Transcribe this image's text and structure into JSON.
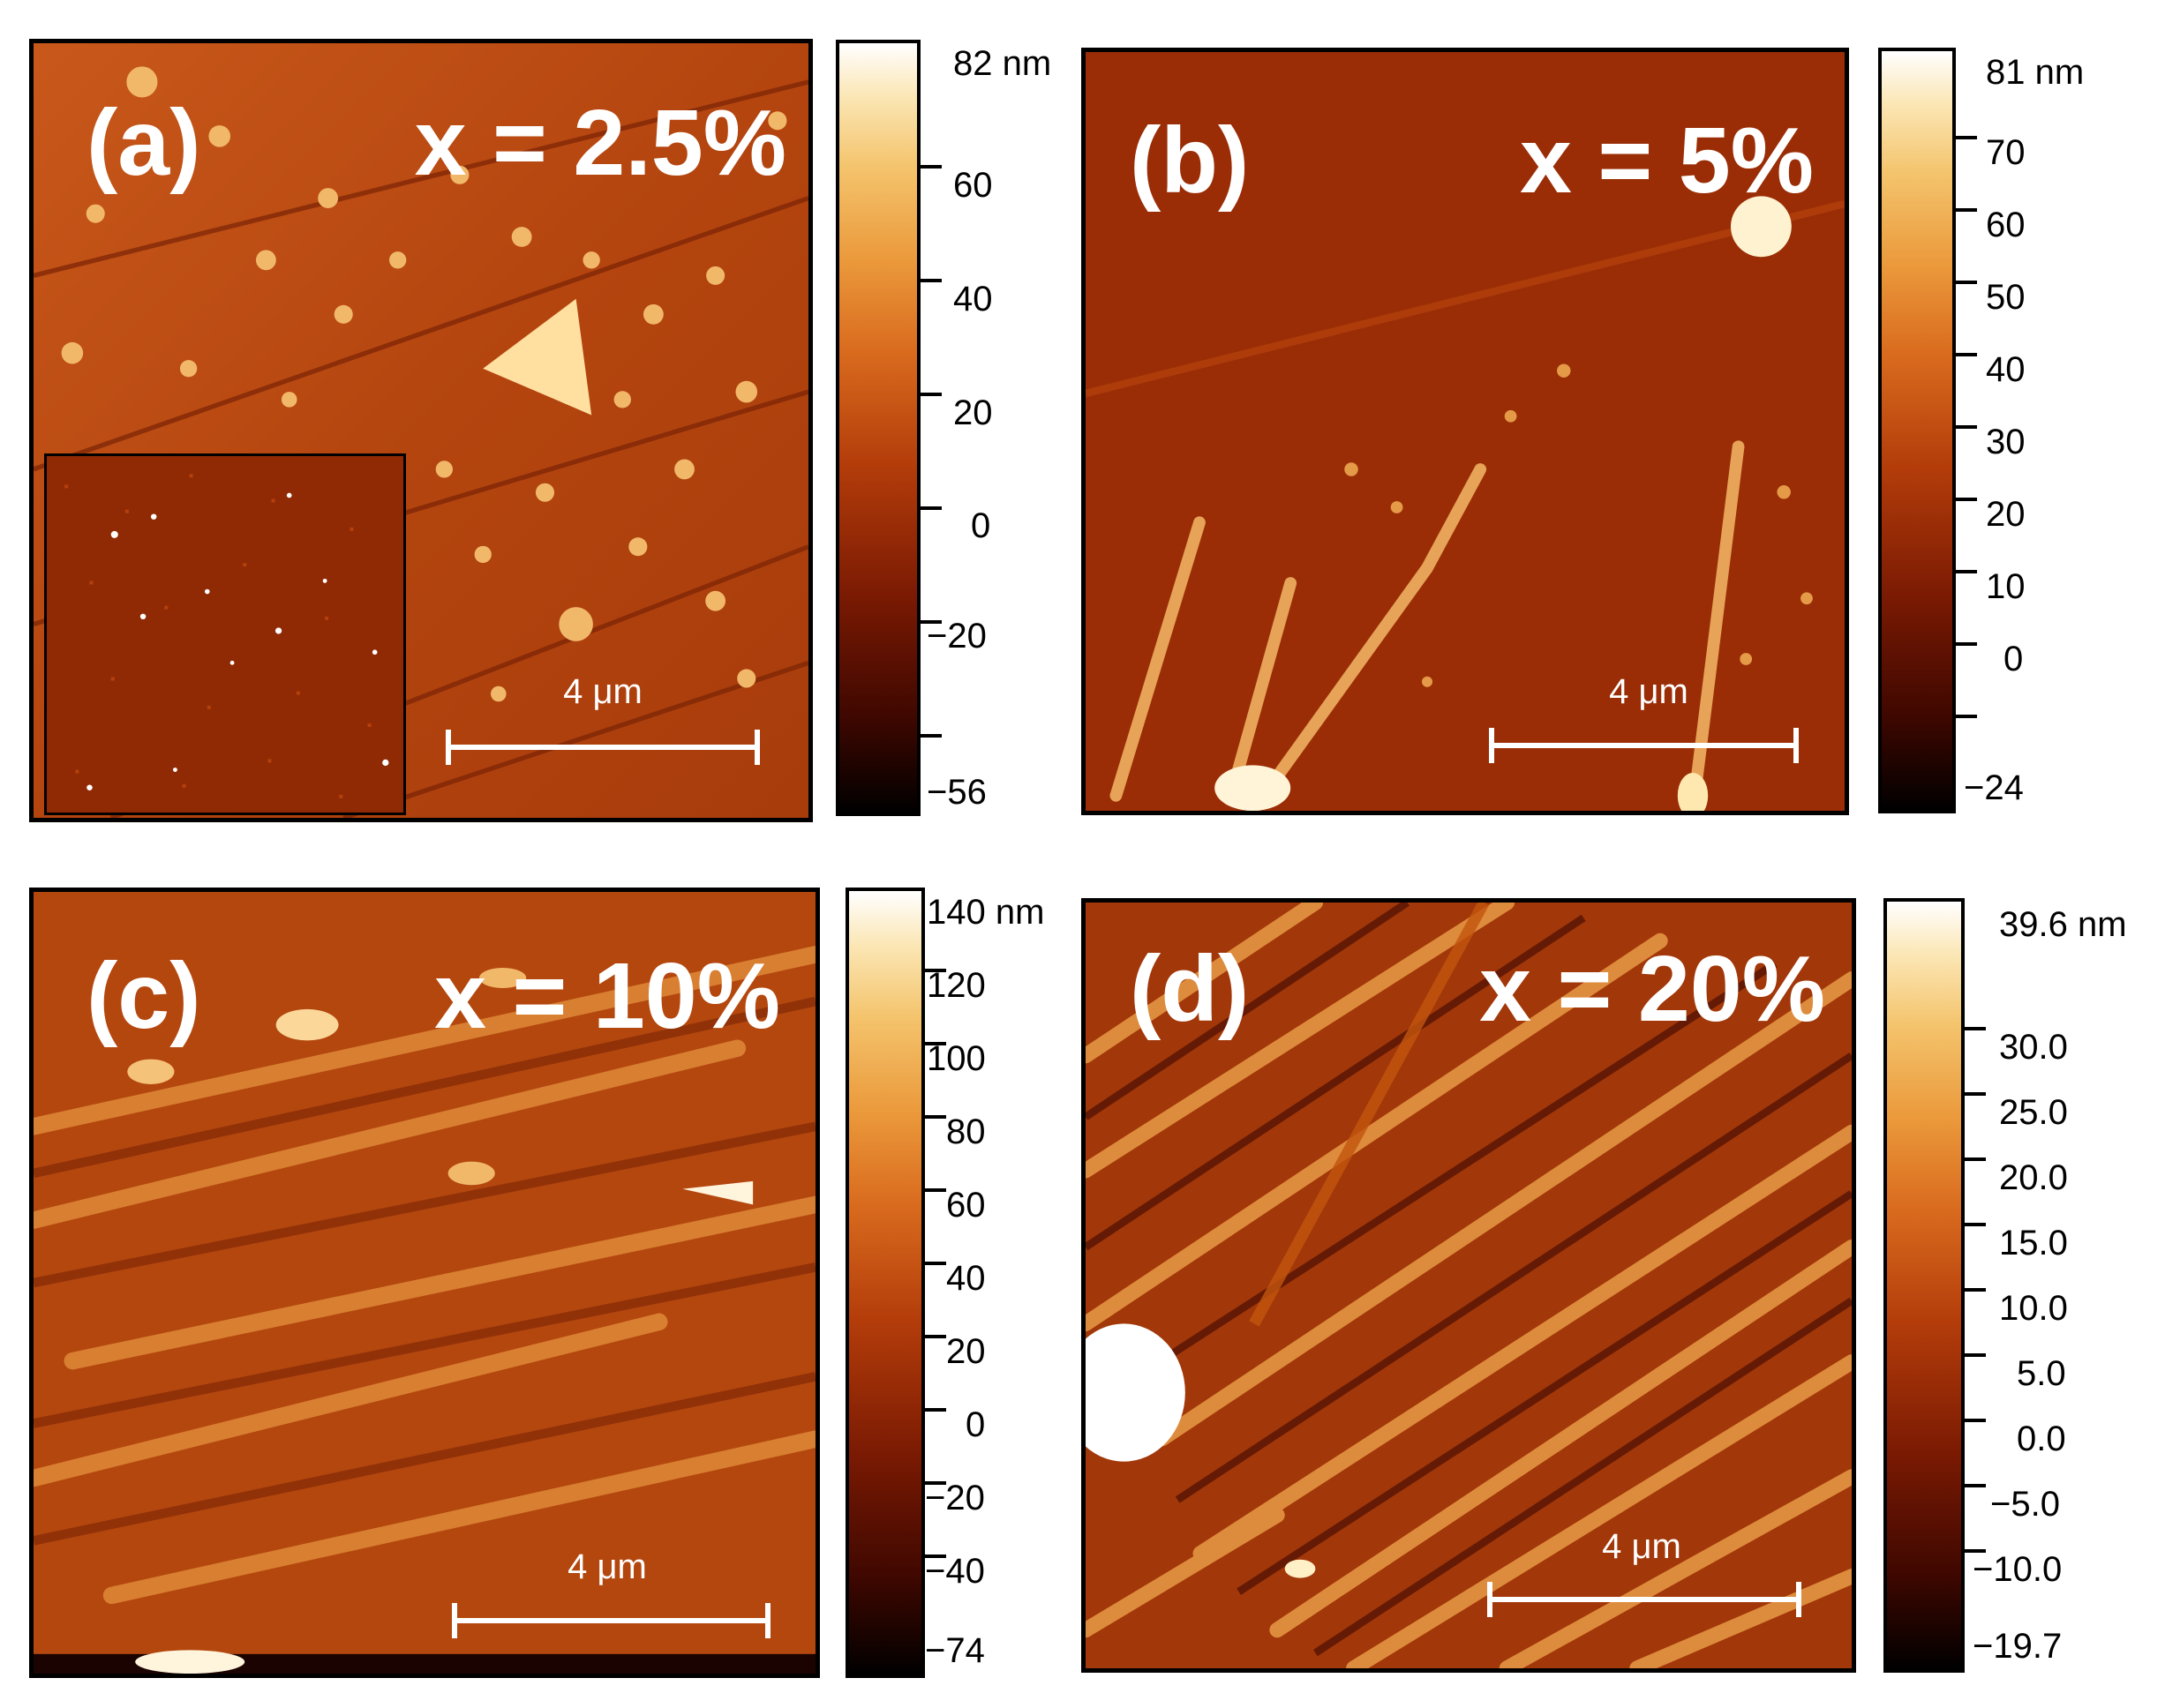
{
  "panels": {
    "a": {
      "label": "(a)",
      "composition": "x = 2.5%",
      "scale_bar": "4 μm"
    },
    "b": {
      "label": "(b)",
      "composition": "x = 5%",
      "scale_bar": "4 μm"
    },
    "c": {
      "label": "(c)",
      "composition": "x = 10%",
      "scale_bar": "4 μm"
    },
    "d": {
      "label": "(d)",
      "composition": "x = 20%",
      "scale_bar": "4 μm"
    }
  },
  "colorbars": {
    "a": {
      "ticks": [
        "82 nm",
        "60",
        "40",
        "20",
        "0",
        "−20",
        "−56"
      ]
    },
    "b": {
      "ticks": [
        "81 nm",
        "70",
        "60",
        "50",
        "40",
        "30",
        "20",
        "10",
        "0",
        "−24"
      ]
    },
    "c": {
      "ticks": [
        "140 nm",
        "120",
        "100",
        "80",
        "60",
        "40",
        "20",
        "0",
        "−20",
        "−40",
        "−74"
      ]
    },
    "d": {
      "ticks": [
        "39.6 nm",
        "30.0",
        "25.0",
        "20.0",
        "15.0",
        "10.0",
        "5.0",
        "0.0",
        "−5.0",
        "−10.0",
        "−19.7"
      ]
    }
  },
  "colormap": [
    "#000000",
    "#7a1a03",
    "#b33c0a",
    "#d96b1e",
    "#f4c46d",
    "#ffffff"
  ]
}
